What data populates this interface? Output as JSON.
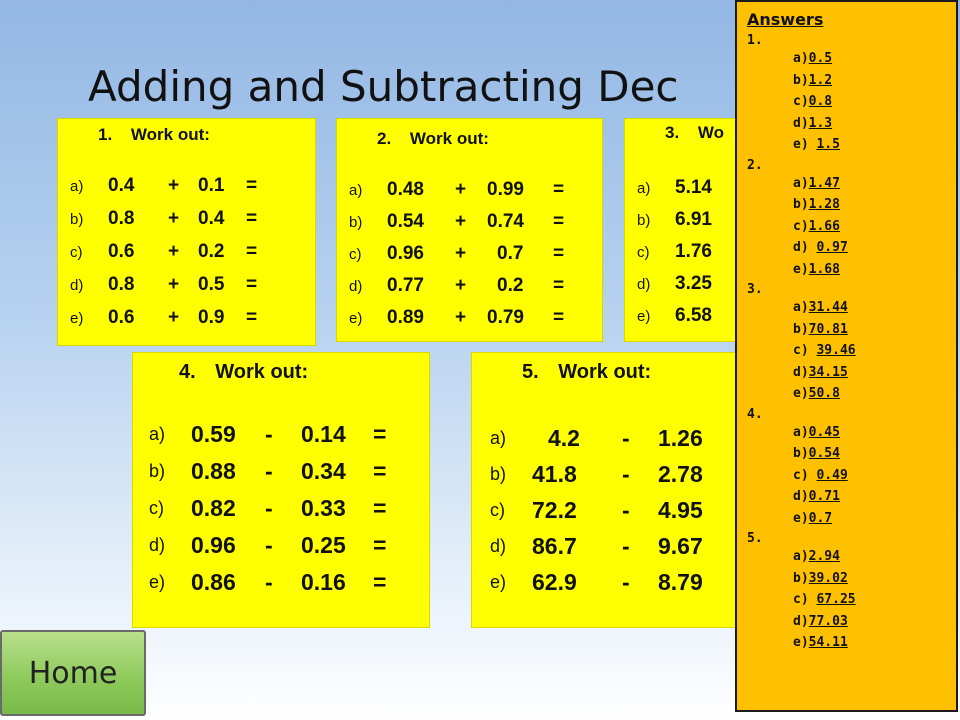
{
  "slide": {
    "title": "Adding and Subtracting Dec"
  },
  "cards": [
    {
      "number": "1.",
      "label": "Work out:",
      "rows": [
        {
          "letter": "a)",
          "left": "0.4",
          "op": "+",
          "right": "0.1",
          "eq": "="
        },
        {
          "letter": "b)",
          "left": "0.8",
          "op": "+",
          "right": "0.4",
          "eq": "="
        },
        {
          "letter": "c)",
          "left": "0.6",
          "op": "+",
          "right": "0.2",
          "eq": "="
        },
        {
          "letter": "d)",
          "left": "0.8",
          "op": "+",
          "right": "0.5",
          "eq": "="
        },
        {
          "letter": "e)",
          "left": "0.6",
          "op": "+",
          "right": "0.9",
          "eq": "="
        }
      ]
    },
    {
      "number": "2.",
      "label": "Work out:",
      "rows": [
        {
          "letter": "a)",
          "left": "0.48",
          "op": "+",
          "right": "0.99",
          "eq": "="
        },
        {
          "letter": "b)",
          "left": "0.54",
          "op": "+",
          "right": "0.74",
          "eq": "="
        },
        {
          "letter": "c)",
          "left": "0.96",
          "op": "+",
          "right": "0.7",
          "eq": "="
        },
        {
          "letter": "d)",
          "left": "0.77",
          "op": "+",
          "right": "0.2",
          "eq": "="
        },
        {
          "letter": "e)",
          "left": "0.89",
          "op": "+",
          "right": "0.79",
          "eq": "="
        }
      ]
    },
    {
      "number": "3.",
      "label": "Wo",
      "rows": [
        {
          "letter": "a)",
          "left": "5.14"
        },
        {
          "letter": "b)",
          "left": "6.91"
        },
        {
          "letter": "c)",
          "left": "1.76"
        },
        {
          "letter": "d)",
          "left": "3.25"
        },
        {
          "letter": "e)",
          "left": "6.58"
        }
      ]
    },
    {
      "number": "4.",
      "label": "Work out:",
      "rows": [
        {
          "letter": "a)",
          "left": "0.59",
          "op": "-",
          "right": "0.14",
          "eq": "="
        },
        {
          "letter": "b)",
          "left": "0.88",
          "op": "-",
          "right": "0.34",
          "eq": "="
        },
        {
          "letter": "c)",
          "left": "0.82",
          "op": "-",
          "right": "0.33",
          "eq": "="
        },
        {
          "letter": "d)",
          "left": "0.96",
          "op": "-",
          "right": "0.25",
          "eq": "="
        },
        {
          "letter": "e)",
          "left": "0.86",
          "op": "-",
          "right": "0.16",
          "eq": "="
        }
      ]
    },
    {
      "number": "5.",
      "label": "Work out:",
      "rows": [
        {
          "letter": "a)",
          "left": "4.2",
          "op": "-",
          "right": "1.26"
        },
        {
          "letter": "b)",
          "left": "41.8",
          "op": "-",
          "right": "2.78"
        },
        {
          "letter": "c)",
          "left": "72.2",
          "op": "-",
          "right": "4.95"
        },
        {
          "letter": "d)",
          "left": "86.7",
          "op": "-",
          "right": "9.67"
        },
        {
          "letter": "e)",
          "left": "62.9",
          "op": "-",
          "right": "8.79"
        }
      ]
    }
  ],
  "answers": {
    "heading": "Answers",
    "groups": [
      {
        "label": "1.",
        "items": [
          {
            "prefix": "a)",
            "value": "0.5"
          },
          {
            "prefix": "b)",
            "value": "1.2"
          },
          {
            "prefix": "c)",
            "value": "0.8"
          },
          {
            "prefix": "d)",
            "value": "1.3"
          },
          {
            "prefix": "e) ",
            "value": "1.5"
          }
        ]
      },
      {
        "label": "2.",
        "items": [
          {
            "prefix": "a)",
            "value": "1.47"
          },
          {
            "prefix": "b)",
            "value": "1.28"
          },
          {
            "prefix": "c)",
            "value": "1.66"
          },
          {
            "prefix": "d) ",
            "value": "0.97"
          },
          {
            "prefix": "e)",
            "value": "1.68"
          }
        ]
      },
      {
        "label": "3.",
        "items": [
          {
            "prefix": "a)",
            "value": "31.44"
          },
          {
            "prefix": "b)",
            "value": "70.81"
          },
          {
            "prefix": "c) ",
            "value": "39.46"
          },
          {
            "prefix": "d)",
            "value": "34.15"
          },
          {
            "prefix": "e)",
            "value": "50.8"
          }
        ]
      },
      {
        "label": "4.",
        "items": [
          {
            "prefix": "a)",
            "value": "0.45"
          },
          {
            "prefix": "b)",
            "value": "0.54"
          },
          {
            "prefix": "c) ",
            "value": "0.49"
          },
          {
            "prefix": "d)",
            "value": "0.71"
          },
          {
            "prefix": "e)",
            "value": "0.7"
          }
        ]
      },
      {
        "label": "5.",
        "items": [
          {
            "prefix": "a)",
            "value": "2.94"
          },
          {
            "prefix": "b)",
            "value": "39.02"
          },
          {
            "prefix": "c) ",
            "value": "67.25"
          },
          {
            "prefix": "d)",
            "value": "77.03"
          },
          {
            "prefix": "e)",
            "value": "54.11"
          }
        ]
      }
    ]
  },
  "home_button": {
    "label": "Home"
  }
}
